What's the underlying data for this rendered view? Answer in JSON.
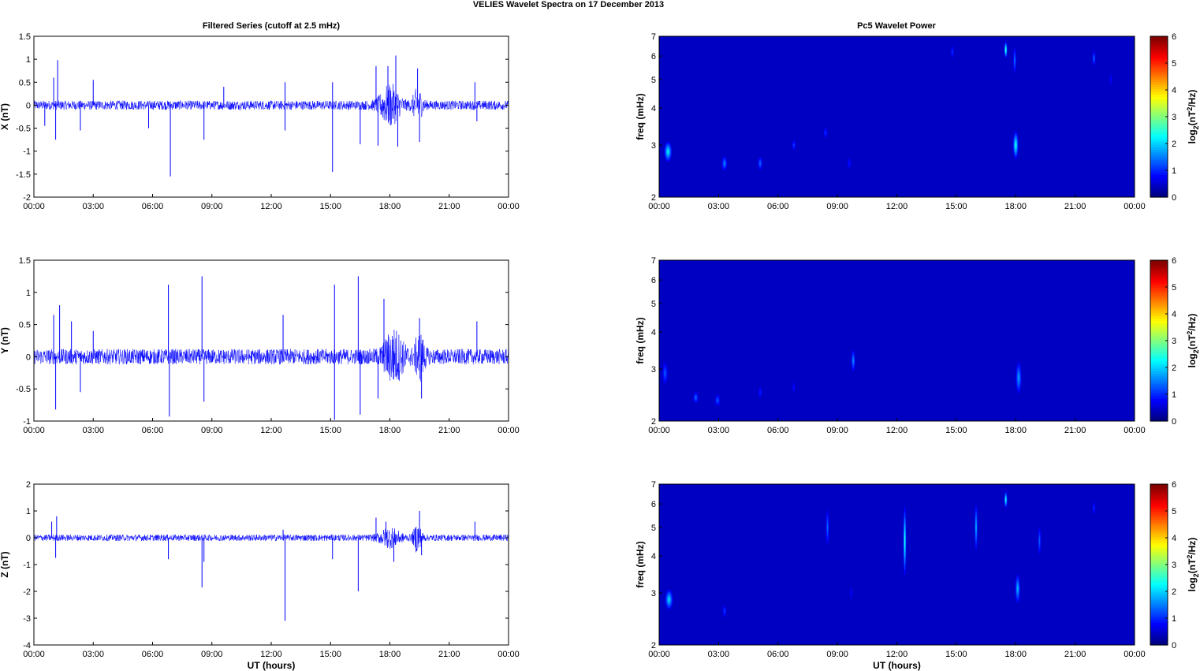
{
  "suptitle": "VELIES Wavelet Spectra on 17 December  2013",
  "left_title": "Filtered Series (cutoff at 2.5 mHz)",
  "right_title": "Pc5 Wavelet Power",
  "xlabel": "UT (hours)",
  "time_ticks": [
    "00:00",
    "03:00",
    "06:00",
    "09:00",
    "12:00",
    "15:00",
    "18:00",
    "21:00",
    "00:00"
  ],
  "colors": {
    "trace": "#0000ff",
    "background": "#00008f",
    "axis": "#000000"
  },
  "chart_data": [
    {
      "type": "line",
      "name": "X component",
      "ylabel": "X (nT)",
      "xlim": [
        0,
        24
      ],
      "ylim": [
        -2,
        1.5
      ],
      "yticks": [
        1.5,
        1,
        0.5,
        0,
        -0.5,
        -1,
        -1.5,
        -2
      ],
      "noise_amplitude": 0.1,
      "spikes": [
        {
          "x": 0.55,
          "y": -0.45
        },
        {
          "x": 1.0,
          "y": 0.6
        },
        {
          "x": 1.1,
          "y": -0.75
        },
        {
          "x": 1.2,
          "y": 0.98
        },
        {
          "x": 2.35,
          "y": -0.55
        },
        {
          "x": 3.0,
          "y": 0.55
        },
        {
          "x": 5.8,
          "y": -0.5
        },
        {
          "x": 6.9,
          "y": -1.55
        },
        {
          "x": 8.6,
          "y": -0.75
        },
        {
          "x": 9.6,
          "y": 0.4
        },
        {
          "x": 12.7,
          "y": 0.5
        },
        {
          "x": 12.7,
          "y": -0.55
        },
        {
          "x": 15.1,
          "y": -1.45
        },
        {
          "x": 15.1,
          "y": 0.5
        },
        {
          "x": 16.5,
          "y": -0.85
        },
        {
          "x": 17.3,
          "y": 0.85
        },
        {
          "x": 17.4,
          "y": -0.88
        },
        {
          "x": 17.9,
          "y": 0.85
        },
        {
          "x": 18.3,
          "y": 1.08
        },
        {
          "x": 18.4,
          "y": -0.9
        },
        {
          "x": 19.4,
          "y": 0.8
        },
        {
          "x": 19.5,
          "y": -0.8
        },
        {
          "x": 22.3,
          "y": 0.5
        },
        {
          "x": 22.4,
          "y": -0.35
        }
      ],
      "bursts": [
        {
          "x": 18.0,
          "width": 1.0,
          "amp": 0.4
        },
        {
          "x": 19.4,
          "width": 0.5,
          "amp": 0.3
        }
      ]
    },
    {
      "type": "line",
      "name": "Y component",
      "ylabel": "Y (nT)",
      "xlim": [
        0,
        24
      ],
      "ylim": [
        -1,
        1.5
      ],
      "yticks": [
        1.5,
        1,
        0.5,
        0,
        -0.5,
        -1
      ],
      "noise_amplitude": 0.12,
      "spikes": [
        {
          "x": 1.0,
          "y": 0.65
        },
        {
          "x": 1.1,
          "y": -0.82
        },
        {
          "x": 1.3,
          "y": 0.8
        },
        {
          "x": 1.9,
          "y": 0.55
        },
        {
          "x": 2.35,
          "y": -0.55
        },
        {
          "x": 3.0,
          "y": 0.4
        },
        {
          "x": 6.8,
          "y": 1.12
        },
        {
          "x": 6.85,
          "y": -0.93
        },
        {
          "x": 8.5,
          "y": 1.25
        },
        {
          "x": 8.6,
          "y": -0.7
        },
        {
          "x": 12.6,
          "y": 0.65
        },
        {
          "x": 15.2,
          "y": 1.12
        },
        {
          "x": 15.2,
          "y": -0.98
        },
        {
          "x": 16.4,
          "y": 1.25
        },
        {
          "x": 16.5,
          "y": -0.9
        },
        {
          "x": 17.4,
          "y": -0.65
        },
        {
          "x": 17.7,
          "y": 0.9
        },
        {
          "x": 19.5,
          "y": 0.6
        },
        {
          "x": 19.6,
          "y": -0.65
        },
        {
          "x": 22.4,
          "y": 0.55
        }
      ],
      "bursts": [
        {
          "x": 18.2,
          "width": 1.0,
          "amp": 0.35
        },
        {
          "x": 19.5,
          "width": 0.5,
          "amp": 0.3
        }
      ]
    },
    {
      "type": "line",
      "name": "Z component",
      "ylabel": "Z (nT)",
      "xlim": [
        0,
        24
      ],
      "ylim": [
        -4,
        2
      ],
      "yticks": [
        2,
        1,
        0,
        -1,
        -2,
        -3,
        -4
      ],
      "noise_amplitude": 0.12,
      "spikes": [
        {
          "x": 0.9,
          "y": 0.6
        },
        {
          "x": 1.1,
          "y": -0.75
        },
        {
          "x": 1.15,
          "y": 0.8
        },
        {
          "x": 6.8,
          "y": -0.8
        },
        {
          "x": 8.5,
          "y": -1.85
        },
        {
          "x": 8.6,
          "y": -0.9
        },
        {
          "x": 12.7,
          "y": -3.1
        },
        {
          "x": 12.6,
          "y": 0.3
        },
        {
          "x": 15.1,
          "y": -0.8
        },
        {
          "x": 16.4,
          "y": -2.0
        },
        {
          "x": 17.3,
          "y": 0.75
        },
        {
          "x": 17.8,
          "y": 0.6
        },
        {
          "x": 18.2,
          "y": -0.9
        },
        {
          "x": 19.5,
          "y": 1.0
        },
        {
          "x": 19.6,
          "y": -0.65
        },
        {
          "x": 22.3,
          "y": 0.6
        }
      ],
      "bursts": [
        {
          "x": 18.0,
          "width": 1.0,
          "amp": 0.3
        },
        {
          "x": 19.4,
          "width": 0.4,
          "amp": 0.5
        }
      ]
    },
    {
      "type": "heatmap",
      "name": "X wavelet power",
      "ylabel": "freq (mHz)",
      "xlim": [
        0,
        24
      ],
      "ylim": [
        2,
        7
      ],
      "yscale": "log",
      "yticks": [
        2,
        3,
        4,
        5,
        6,
        7
      ],
      "colorbar_label": "log2(nT^2/Hz)",
      "clim": [
        0,
        6
      ],
      "colorbar_ticks": [
        0,
        1,
        2,
        3,
        4,
        5,
        6
      ],
      "blobs": [
        {
          "t": 0.45,
          "f": 2.85,
          "dt": 0.2,
          "df": 0.45,
          "v": 2.2
        },
        {
          "t": 3.3,
          "f": 2.6,
          "dt": 0.14,
          "df": 0.3,
          "v": 1.4
        },
        {
          "t": 5.1,
          "f": 2.6,
          "dt": 0.12,
          "df": 0.28,
          "v": 1.2
        },
        {
          "t": 6.8,
          "f": 3.0,
          "dt": 0.1,
          "df": 0.25,
          "v": 0.9
        },
        {
          "t": 8.4,
          "f": 3.3,
          "dt": 0.1,
          "df": 0.3,
          "v": 0.8
        },
        {
          "t": 9.6,
          "f": 2.6,
          "dt": 0.1,
          "df": 0.25,
          "v": 0.6
        },
        {
          "t": 14.8,
          "f": 6.2,
          "dt": 0.08,
          "df": 0.6,
          "v": 0.9
        },
        {
          "t": 17.5,
          "f": 6.3,
          "dt": 0.07,
          "df": 0.8,
          "v": 2.8
        },
        {
          "t": 17.95,
          "f": 5.8,
          "dt": 0.08,
          "df": 1.2,
          "v": 1.3
        },
        {
          "t": 18.0,
          "f": 3.0,
          "dt": 0.14,
          "df": 0.65,
          "v": 2.4
        },
        {
          "t": 21.95,
          "f": 5.9,
          "dt": 0.08,
          "df": 0.7,
          "v": 1.3
        },
        {
          "t": 22.8,
          "f": 5.0,
          "dt": 0.06,
          "df": 0.5,
          "v": 0.5
        }
      ]
    },
    {
      "type": "heatmap",
      "name": "Y wavelet power",
      "ylabel": "freq (mHz)",
      "xlim": [
        0,
        24
      ],
      "ylim": [
        2,
        7
      ],
      "yscale": "log",
      "yticks": [
        2,
        3,
        4,
        5,
        6,
        7
      ],
      "colorbar_label": "log2(nT^2/Hz)",
      "clim": [
        0,
        6
      ],
      "colorbar_ticks": [
        0,
        1,
        2,
        3,
        4,
        5,
        6
      ],
      "blobs": [
        {
          "t": 0.3,
          "f": 2.9,
          "dt": 0.14,
          "df": 0.5,
          "v": 1.1
        },
        {
          "t": 1.85,
          "f": 2.4,
          "dt": 0.14,
          "df": 0.22,
          "v": 1.2
        },
        {
          "t": 2.95,
          "f": 2.35,
          "dt": 0.14,
          "df": 0.22,
          "v": 1.1
        },
        {
          "t": 5.1,
          "f": 2.5,
          "dt": 0.1,
          "df": 0.22,
          "v": 0.7
        },
        {
          "t": 6.8,
          "f": 2.6,
          "dt": 0.08,
          "df": 0.22,
          "v": 0.6
        },
        {
          "t": 9.8,
          "f": 3.2,
          "dt": 0.1,
          "df": 0.55,
          "v": 1.5
        },
        {
          "t": 18.15,
          "f": 2.8,
          "dt": 0.15,
          "df": 0.7,
          "v": 1.6
        }
      ]
    },
    {
      "type": "heatmap",
      "name": "Z wavelet power",
      "ylabel": "freq (mHz)",
      "xlim": [
        0,
        24
      ],
      "ylim": [
        2,
        7
      ],
      "yscale": "log",
      "yticks": [
        2,
        3,
        4,
        5,
        6,
        7
      ],
      "colorbar_label": "log2(nT^2/Hz)",
      "clim": [
        0,
        6
      ],
      "colorbar_ticks": [
        0,
        1,
        2,
        3,
        4,
        5,
        6
      ],
      "blobs": [
        {
          "t": 0.5,
          "f": 2.85,
          "dt": 0.2,
          "df": 0.45,
          "v": 2.0
        },
        {
          "t": 3.3,
          "f": 2.6,
          "dt": 0.1,
          "df": 0.25,
          "v": 0.9
        },
        {
          "t": 8.5,
          "f": 5.0,
          "dt": 0.09,
          "df": 1.4,
          "v": 1.2
        },
        {
          "t": 9.7,
          "f": 3.0,
          "dt": 0.06,
          "df": 0.35,
          "v": 0.4
        },
        {
          "t": 12.4,
          "f": 4.5,
          "dt": 0.06,
          "df": 2.4,
          "v": 2.5
        },
        {
          "t": 16.0,
          "f": 5.0,
          "dt": 0.07,
          "df": 1.8,
          "v": 1.8
        },
        {
          "t": 17.5,
          "f": 6.2,
          "dt": 0.07,
          "df": 0.8,
          "v": 2.5
        },
        {
          "t": 18.1,
          "f": 3.1,
          "dt": 0.13,
          "df": 0.7,
          "v": 1.8
        },
        {
          "t": 19.2,
          "f": 4.5,
          "dt": 0.08,
          "df": 1.0,
          "v": 1.2
        },
        {
          "t": 21.95,
          "f": 5.8,
          "dt": 0.06,
          "df": 0.6,
          "v": 0.8
        }
      ]
    }
  ]
}
